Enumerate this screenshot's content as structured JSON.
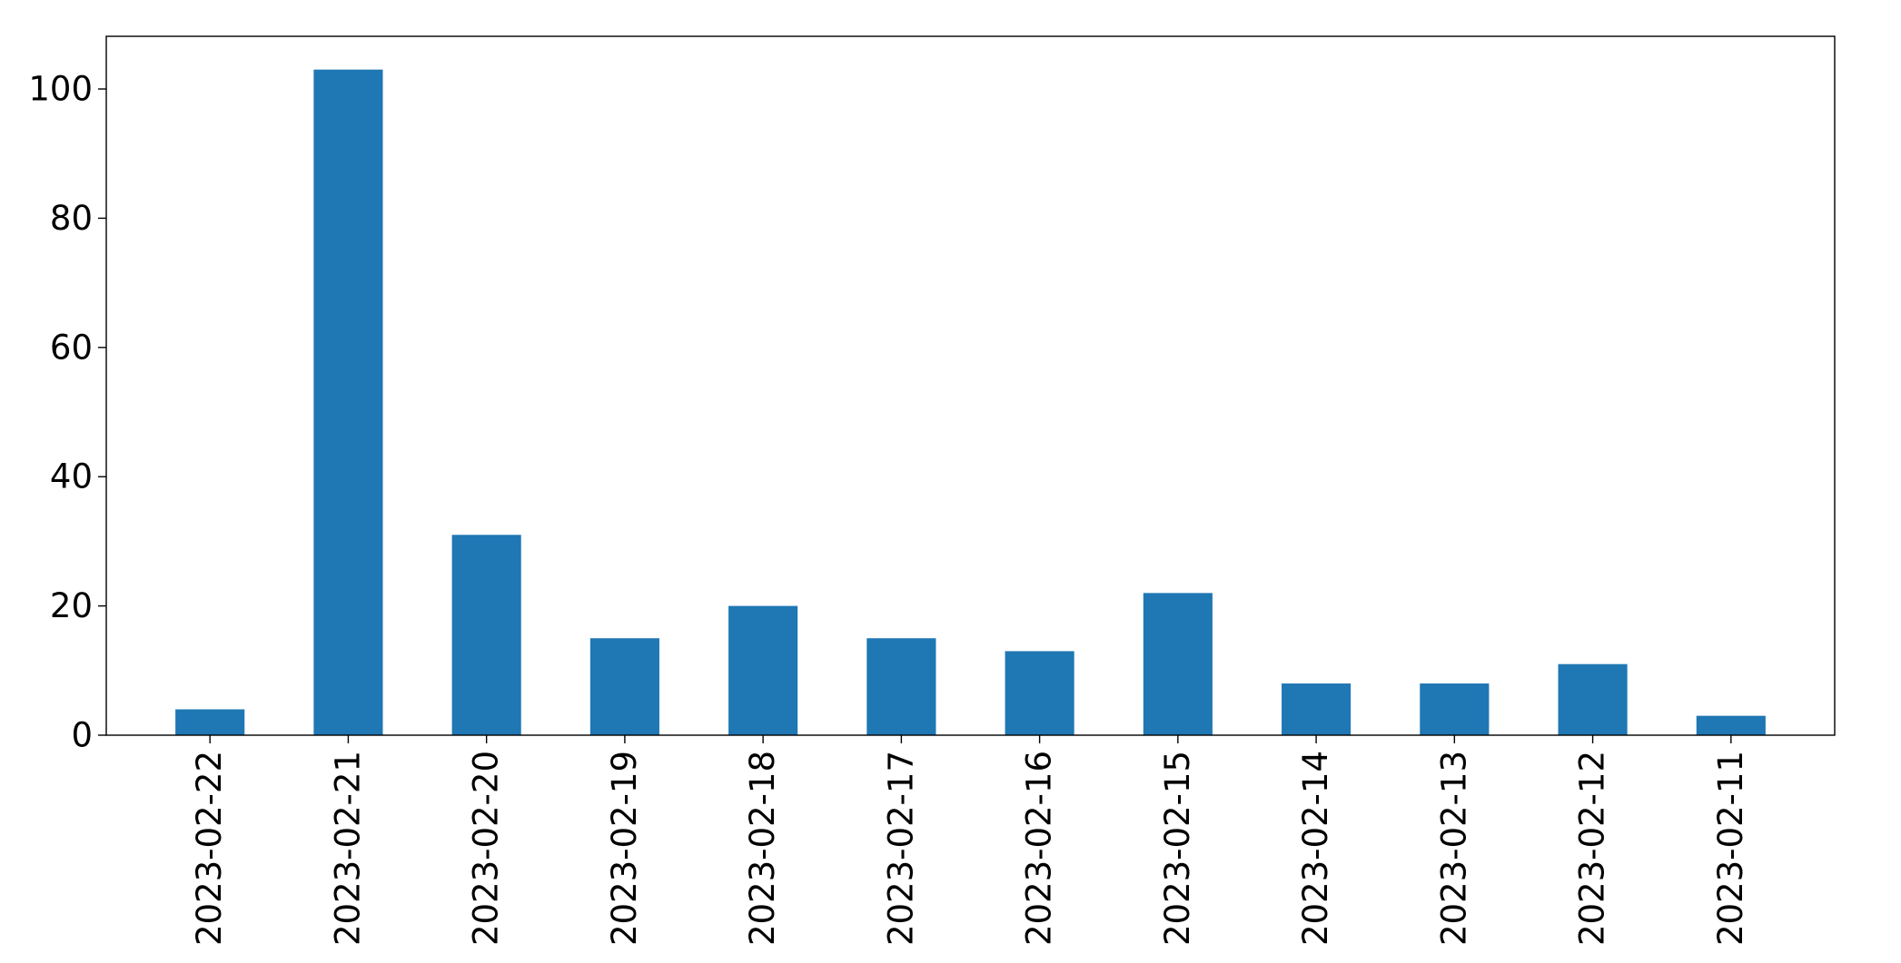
{
  "chart_data": {
    "type": "bar",
    "title": "",
    "xlabel": "",
    "ylabel": "",
    "categories": [
      "2023-02-22",
      "2023-02-21",
      "2023-02-20",
      "2023-02-19",
      "2023-02-18",
      "2023-02-17",
      "2023-02-16",
      "2023-02-15",
      "2023-02-14",
      "2023-02-13",
      "2023-02-12",
      "2023-02-11"
    ],
    "values": [
      4,
      103,
      31,
      15,
      20,
      15,
      13,
      22,
      8,
      8,
      11,
      3
    ],
    "ylim": [
      0,
      108.15
    ],
    "yticks": [
      0,
      20,
      40,
      60,
      80,
      100
    ],
    "ytick_labels": [
      "0",
      "20",
      "40",
      "60",
      "80",
      "100"
    ],
    "grid": false,
    "legend": false,
    "colors": {
      "bar": "#1f77b4",
      "axes": "#000000",
      "background": "#ffffff"
    }
  }
}
